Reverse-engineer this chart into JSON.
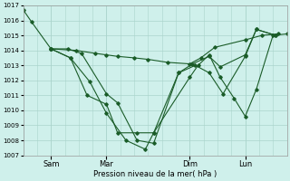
{
  "background_color": "#cff0eb",
  "grid_color": "#aad4cc",
  "line_color": "#1a5c28",
  "xlabel": "Pression niveau de la mer( hPa )",
  "ylim": [
    1007,
    1017
  ],
  "yticks": [
    1007,
    1008,
    1009,
    1010,
    1011,
    1012,
    1013,
    1014,
    1015,
    1016,
    1017
  ],
  "xtick_labels": [
    "Sam",
    "Mar",
    "Dim",
    "Lun"
  ],
  "xtick_positions": [
    1.0,
    3.0,
    6.0,
    8.0
  ],
  "xlim": [
    0.0,
    9.5
  ],
  "vlines": [
    1.0,
    3.0,
    6.0,
    8.0
  ],
  "series1": {
    "x": [
      0.0,
      0.3,
      1.0,
      1.7,
      2.4,
      3.0,
      3.7,
      4.4,
      4.7,
      6.0,
      6.3,
      6.7,
      7.1,
      7.6,
      8.0,
      8.4,
      9.0,
      9.5
    ],
    "y": [
      1016.7,
      1015.9,
      1014.1,
      1013.5,
      1011.9,
      1009.8,
      1008.0,
      1007.4,
      1008.5,
      1012.2,
      1013.0,
      1013.7,
      1012.2,
      1010.8,
      1009.6,
      1011.4,
      1015.0,
      1015.1
    ]
  },
  "series2": {
    "x": [
      1.0,
      1.9,
      2.6,
      3.0,
      3.4,
      4.0,
      4.5,
      5.2,
      6.0,
      6.4,
      6.9,
      8.0,
      8.6,
      9.2
    ],
    "y": [
      1014.1,
      1014.0,
      1013.8,
      1013.7,
      1013.6,
      1013.5,
      1013.4,
      1013.2,
      1013.1,
      1013.5,
      1014.2,
      1014.7,
      1015.0,
      1015.1
    ]
  },
  "series3": {
    "x": [
      1.0,
      1.7,
      2.3,
      3.0,
      3.4,
      4.1,
      4.7,
      5.6,
      6.1,
      6.7,
      7.1,
      8.0,
      8.4,
      9.1
    ],
    "y": [
      1014.1,
      1013.5,
      1011.0,
      1010.4,
      1008.5,
      1008.5,
      1008.5,
      1012.5,
      1013.1,
      1013.6,
      1012.9,
      1013.7,
      1015.4,
      1015.0
    ]
  },
  "series4": {
    "x": [
      1.0,
      1.6,
      2.1,
      3.0,
      3.4,
      4.1,
      4.7,
      5.6,
      6.2,
      6.7,
      7.2,
      8.0,
      8.4,
      9.1
    ],
    "y": [
      1014.1,
      1014.1,
      1013.8,
      1011.1,
      1010.5,
      1008.0,
      1007.8,
      1012.5,
      1013.0,
      1012.5,
      1011.1,
      1013.6,
      1015.4,
      1015.0
    ]
  }
}
